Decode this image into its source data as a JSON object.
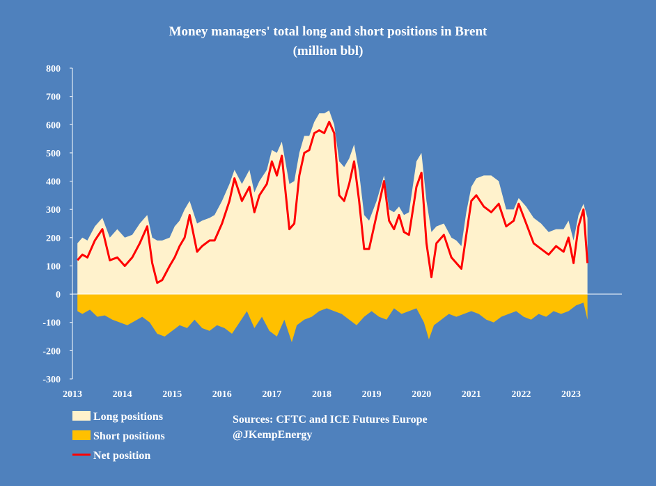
{
  "chart_data": {
    "type": "area",
    "title": "Money managers' total long and short positions in Brent",
    "subtitle": "(million bbl)",
    "xlabel": "",
    "ylabel": "",
    "xlim": [
      2013,
      2024
    ],
    "ylim": [
      -300,
      800
    ],
    "y_ticks": [
      "800",
      "700",
      "600",
      "500",
      "400",
      "300",
      "200",
      "100",
      "0",
      "-100",
      "-200",
      "-300"
    ],
    "x_ticks": [
      "2013",
      "2014",
      "2015",
      "2016",
      "2017",
      "2018",
      "2019",
      "2020",
      "2021",
      "2022",
      "2023"
    ],
    "grid": false,
    "legend_position": "bottom-left",
    "colors": {
      "long": "#fff2cc",
      "short": "#ffc000",
      "net": "#ff0000",
      "background": "#4f81bd"
    },
    "series": [
      {
        "name": "Long positions",
        "x": [
          2013.1,
          2013.2,
          2013.3,
          2013.45,
          2013.6,
          2013.75,
          2013.9,
          2014.05,
          2014.2,
          2014.35,
          2014.5,
          2014.6,
          2014.7,
          2014.8,
          2014.95,
          2015.05,
          2015.15,
          2015.25,
          2015.35,
          2015.5,
          2015.6,
          2015.75,
          2015.85,
          2016.0,
          2016.15,
          2016.25,
          2016.4,
          2016.55,
          2016.65,
          2016.75,
          2016.9,
          2017.0,
          2017.1,
          2017.2,
          2017.35,
          2017.45,
          2017.55,
          2017.65,
          2017.75,
          2017.85,
          2017.95,
          2018.05,
          2018.15,
          2018.25,
          2018.35,
          2018.45,
          2018.55,
          2018.65,
          2018.75,
          2018.85,
          2018.95,
          2019.1,
          2019.25,
          2019.35,
          2019.45,
          2019.55,
          2019.65,
          2019.75,
          2019.9,
          2020.0,
          2020.1,
          2020.2,
          2020.3,
          2020.45,
          2020.6,
          2020.7,
          2020.8,
          2020.9,
          2021.0,
          2021.1,
          2021.25,
          2021.4,
          2021.55,
          2021.7,
          2021.85,
          2021.95,
          2022.1,
          2022.25,
          2022.4,
          2022.55,
          2022.7,
          2022.85,
          2022.95,
          2023.05,
          2023.15,
          2023.25,
          2023.33
        ],
        "values": [
          180,
          200,
          190,
          240,
          270,
          200,
          230,
          200,
          210,
          250,
          280,
          200,
          190,
          190,
          200,
          240,
          260,
          300,
          330,
          250,
          260,
          270,
          280,
          330,
          390,
          440,
          390,
          440,
          360,
          400,
          440,
          510,
          500,
          540,
          390,
          400,
          500,
          560,
          560,
          610,
          640,
          640,
          650,
          600,
          470,
          450,
          480,
          530,
          430,
          280,
          260,
          330,
          420,
          300,
          290,
          310,
          280,
          290,
          470,
          500,
          330,
          220,
          240,
          250,
          200,
          190,
          170,
          290,
          380,
          410,
          420,
          420,
          400,
          300,
          300,
          340,
          310,
          270,
          250,
          220,
          230,
          230,
          260,
          190,
          280,
          320,
          270
        ]
      },
      {
        "name": "Short positions",
        "x": [
          2013.1,
          2013.2,
          2013.35,
          2013.5,
          2013.65,
          2013.8,
          2013.95,
          2014.1,
          2014.25,
          2014.4,
          2014.55,
          2014.7,
          2014.85,
          2015.0,
          2015.15,
          2015.3,
          2015.45,
          2015.6,
          2015.75,
          2015.9,
          2016.05,
          2016.2,
          2016.35,
          2016.5,
          2016.65,
          2016.8,
          2016.95,
          2017.1,
          2017.25,
          2017.4,
          2017.5,
          2017.65,
          2017.8,
          2017.95,
          2018.1,
          2018.25,
          2018.4,
          2018.55,
          2018.7,
          2018.85,
          2019.0,
          2019.15,
          2019.3,
          2019.45,
          2019.6,
          2019.75,
          2019.9,
          2020.05,
          2020.15,
          2020.25,
          2020.4,
          2020.55,
          2020.7,
          2020.85,
          2021.0,
          2021.15,
          2021.3,
          2021.45,
          2021.6,
          2021.75,
          2021.9,
          2022.05,
          2022.2,
          2022.35,
          2022.5,
          2022.65,
          2022.8,
          2022.95,
          2023.1,
          2023.25,
          2023.33
        ],
        "values": [
          -60,
          -70,
          -55,
          -80,
          -75,
          -90,
          -100,
          -110,
          -95,
          -80,
          -100,
          -140,
          -150,
          -130,
          -110,
          -120,
          -90,
          -120,
          -130,
          -110,
          -120,
          -140,
          -100,
          -60,
          -120,
          -80,
          -130,
          -150,
          -90,
          -170,
          -110,
          -90,
          -80,
          -60,
          -50,
          -60,
          -70,
          -90,
          -110,
          -80,
          -60,
          -80,
          -90,
          -50,
          -70,
          -60,
          -50,
          -100,
          -160,
          -110,
          -90,
          -70,
          -80,
          -70,
          -60,
          -70,
          -90,
          -100,
          -80,
          -70,
          -60,
          -80,
          -90,
          -70,
          -80,
          -60,
          -70,
          -60,
          -40,
          -30,
          -90
        ]
      },
      {
        "name": "Net position",
        "x": [
          2013.1,
          2013.2,
          2013.3,
          2013.45,
          2013.6,
          2013.75,
          2013.9,
          2014.05,
          2014.2,
          2014.35,
          2014.5,
          2014.6,
          2014.7,
          2014.8,
          2014.95,
          2015.05,
          2015.15,
          2015.25,
          2015.35,
          2015.5,
          2015.6,
          2015.75,
          2015.85,
          2016.0,
          2016.15,
          2016.25,
          2016.4,
          2016.55,
          2016.65,
          2016.75,
          2016.9,
          2017.0,
          2017.1,
          2017.2,
          2017.35,
          2017.45,
          2017.55,
          2017.65,
          2017.75,
          2017.85,
          2017.95,
          2018.05,
          2018.15,
          2018.25,
          2018.35,
          2018.45,
          2018.55,
          2018.65,
          2018.75,
          2018.85,
          2018.95,
          2019.1,
          2019.25,
          2019.35,
          2019.45,
          2019.55,
          2019.65,
          2019.75,
          2019.9,
          2020.0,
          2020.1,
          2020.2,
          2020.3,
          2020.45,
          2020.6,
          2020.7,
          2020.8,
          2020.9,
          2021.0,
          2021.1,
          2021.25,
          2021.4,
          2021.55,
          2021.7,
          2021.85,
          2021.95,
          2022.1,
          2022.25,
          2022.4,
          2022.55,
          2022.7,
          2022.85,
          2022.95,
          2023.05,
          2023.15,
          2023.25,
          2023.33
        ],
        "values": [
          120,
          140,
          130,
          190,
          230,
          120,
          130,
          100,
          130,
          180,
          240,
          110,
          40,
          50,
          100,
          130,
          170,
          200,
          280,
          150,
          170,
          190,
          190,
          250,
          330,
          410,
          330,
          380,
          290,
          350,
          390,
          470,
          420,
          490,
          230,
          250,
          420,
          500,
          510,
          570,
          580,
          570,
          610,
          570,
          350,
          330,
          390,
          470,
          330,
          160,
          160,
          280,
          400,
          260,
          230,
          280,
          220,
          210,
          380,
          430,
          180,
          60,
          180,
          210,
          130,
          110,
          90,
          210,
          330,
          350,
          310,
          290,
          320,
          240,
          260,
          320,
          250,
          180,
          160,
          140,
          170,
          150,
          200,
          110,
          240,
          300,
          110
        ]
      }
    ]
  },
  "legend": {
    "long_label": "Long positions",
    "short_label": "Short positions",
    "net_label": "Net position"
  },
  "source": {
    "line1": "Sources: CFTC and ICE Futures Europe",
    "line2": "@JKempEnergy"
  }
}
